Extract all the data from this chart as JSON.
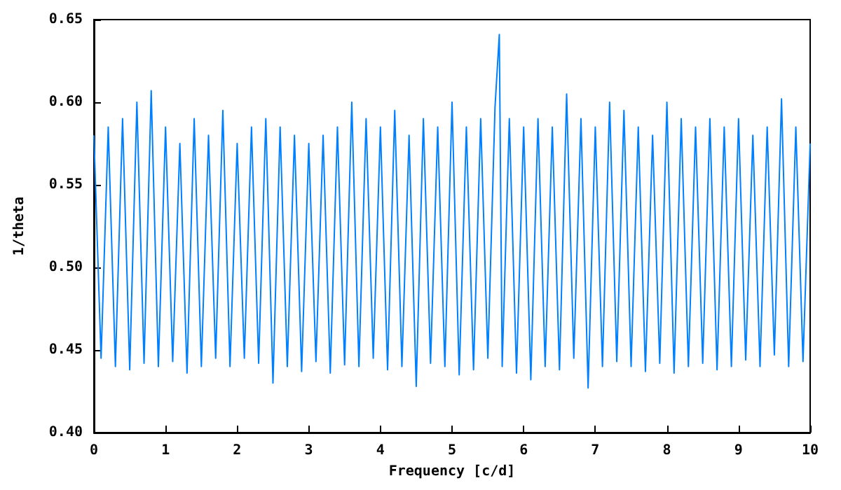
{
  "chart_data": {
    "type": "line",
    "xlabel": "Frequency [c/d]",
    "ylabel": "1/theta",
    "x": [
      0.0,
      0.1,
      0.2,
      0.3,
      0.4,
      0.5,
      0.6,
      0.7,
      0.8,
      0.9,
      1.0,
      1.1,
      1.2,
      1.3,
      1.4,
      1.5,
      1.6,
      1.7,
      1.8,
      1.9,
      2.0,
      2.1,
      2.2,
      2.3,
      2.4,
      2.5,
      2.6,
      2.7,
      2.8,
      2.9,
      3.0,
      3.1,
      3.2,
      3.3,
      3.4,
      3.5,
      3.6,
      3.7,
      3.8,
      3.9,
      4.0,
      4.1,
      4.2,
      4.3,
      4.4,
      4.5,
      4.6,
      4.7,
      4.8,
      4.9,
      5.0,
      5.1,
      5.2,
      5.3,
      5.4,
      5.5,
      5.6,
      5.66,
      5.7,
      5.8,
      5.9,
      6.0,
      6.1,
      6.2,
      6.3,
      6.4,
      6.5,
      6.6,
      6.7,
      6.8,
      6.9,
      7.0,
      7.1,
      7.2,
      7.3,
      7.4,
      7.5,
      7.6,
      7.7,
      7.8,
      7.9,
      8.0,
      8.1,
      8.2,
      8.3,
      8.4,
      8.5,
      8.6,
      8.7,
      8.8,
      8.9,
      9.0,
      9.1,
      9.2,
      9.3,
      9.4,
      9.5,
      9.6,
      9.7,
      9.8,
      9.9,
      10.0
    ],
    "series": [
      {
        "color": "#0080ff",
        "values": [
          0.58,
          0.445,
          0.585,
          0.44,
          0.59,
          0.438,
          0.6,
          0.442,
          0.607,
          0.44,
          0.585,
          0.443,
          0.575,
          0.436,
          0.59,
          0.44,
          0.58,
          0.445,
          0.595,
          0.44,
          0.575,
          0.445,
          0.585,
          0.442,
          0.59,
          0.43,
          0.585,
          0.44,
          0.58,
          0.437,
          0.575,
          0.443,
          0.58,
          0.436,
          0.585,
          0.441,
          0.6,
          0.44,
          0.59,
          0.445,
          0.585,
          0.438,
          0.595,
          0.44,
          0.58,
          0.428,
          0.59,
          0.442,
          0.585,
          0.44,
          0.6,
          0.435,
          0.585,
          0.438,
          0.59,
          0.445,
          0.597,
          0.641,
          0.44,
          0.59,
          0.436,
          0.585,
          0.432,
          0.59,
          0.44,
          0.585,
          0.438,
          0.605,
          0.445,
          0.59,
          0.427,
          0.585,
          0.44,
          0.6,
          0.443,
          0.595,
          0.44,
          0.585,
          0.437,
          0.58,
          0.442,
          0.6,
          0.436,
          0.59,
          0.44,
          0.585,
          0.442,
          0.59,
          0.438,
          0.585,
          0.44,
          0.59,
          0.444,
          0.58,
          0.44,
          0.585,
          0.447,
          0.602,
          0.44,
          0.585,
          0.443,
          0.575
        ]
      }
    ],
    "xlim": [
      0,
      10
    ],
    "xticks": [
      0,
      1,
      2,
      3,
      4,
      5,
      6,
      7,
      8,
      9,
      10
    ],
    "ylim": [
      0.4,
      0.65
    ],
    "yticks": [
      {
        "value": 0.4,
        "label": "0.40"
      },
      {
        "value": 0.45,
        "label": "0.45"
      },
      {
        "value": 0.5,
        "label": "0.50"
      },
      {
        "value": 0.55,
        "label": "0.55"
      },
      {
        "value": 0.6,
        "label": "0.60"
      },
      {
        "value": 0.65,
        "label": "0.65"
      }
    ],
    "grid": false,
    "marker": "none",
    "line_style": "solid"
  }
}
